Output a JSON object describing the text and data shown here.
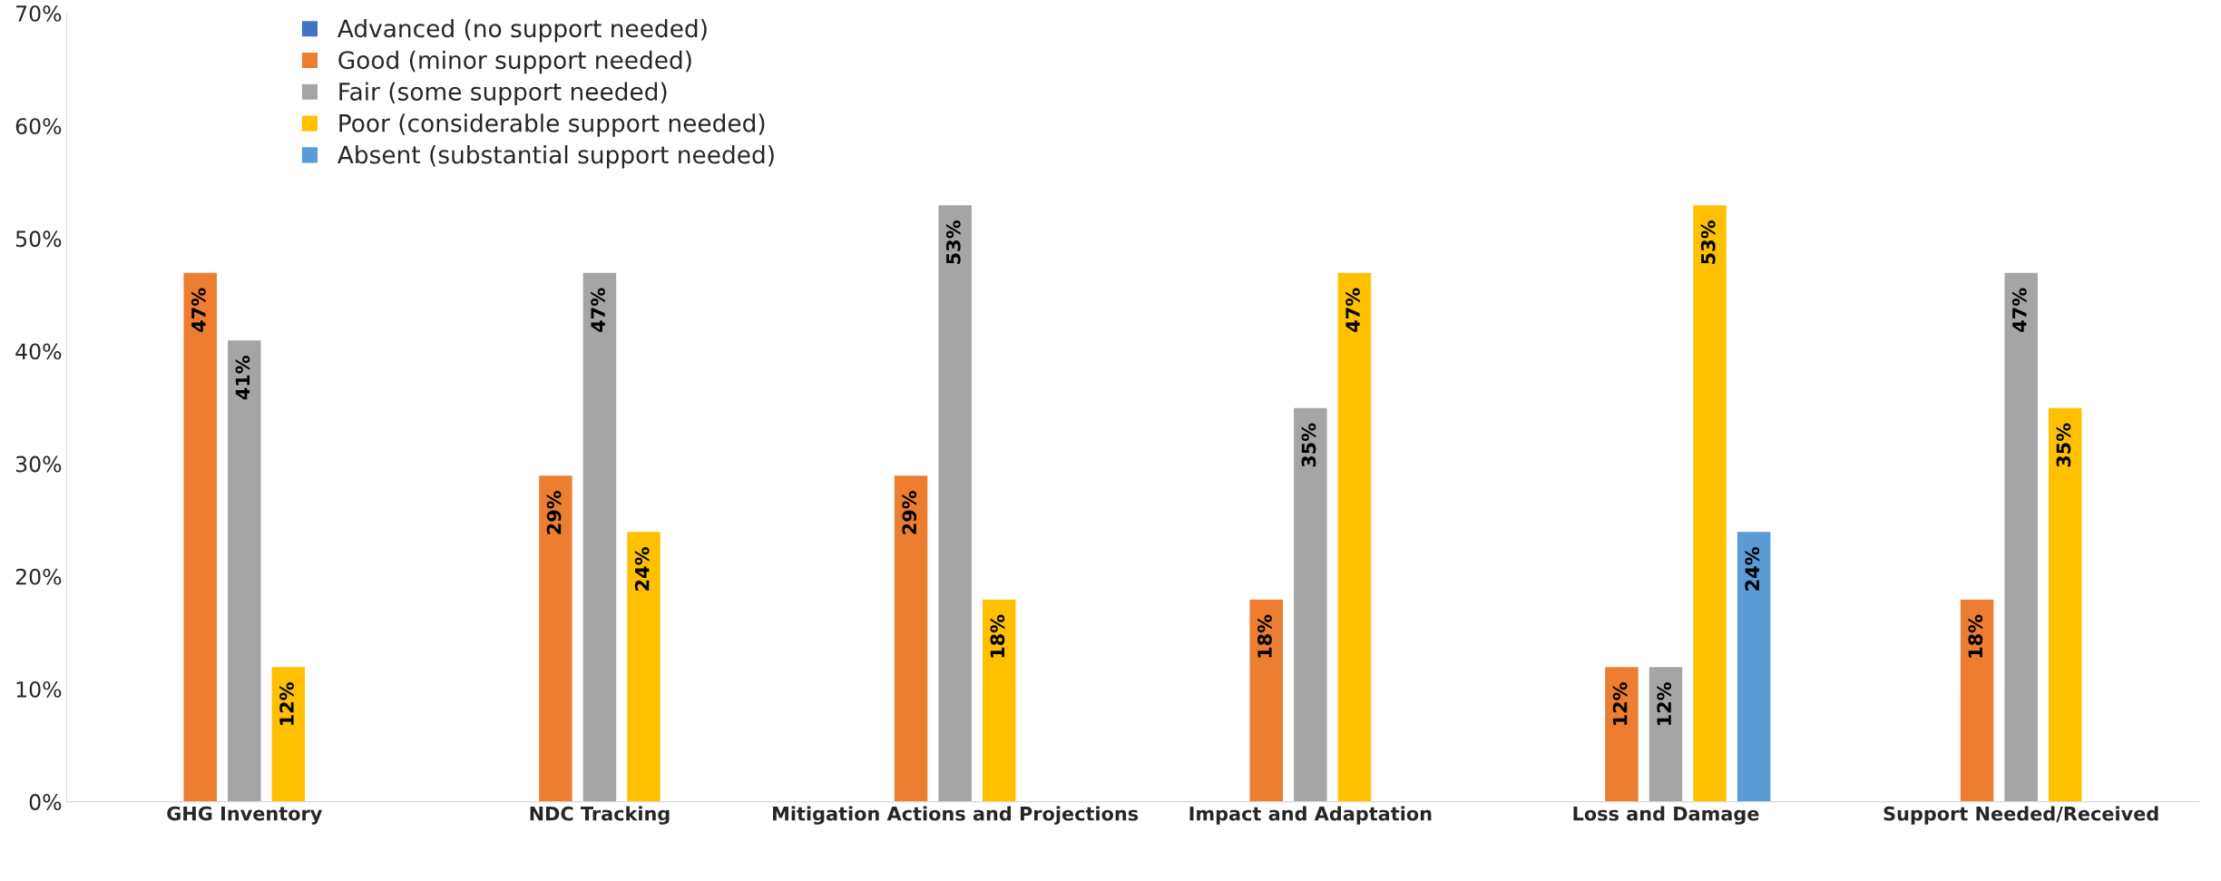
{
  "chart_data": {
    "type": "bar",
    "categories": [
      "GHG Inventory",
      "NDC Tracking",
      "Mitigation Actions and Projections",
      "Impact and Adaptation",
      "Loss and Damage",
      "Support Needed/Received"
    ],
    "series": [
      {
        "name": "Advanced (no support needed)",
        "color": "#4472c4",
        "values": [
          null,
          null,
          null,
          null,
          null,
          null
        ],
        "value_labels": [
          null,
          null,
          null,
          null,
          null,
          null
        ]
      },
      {
        "name": "Good (minor support needed)",
        "color": "#ed7d31",
        "values": [
          47,
          29,
          29,
          18,
          12,
          18
        ],
        "value_labels": [
          "47%",
          "29%",
          "29%",
          "18%",
          "12%",
          "18%"
        ]
      },
      {
        "name": "Fair (some support needed)",
        "color": "#a5a5a5",
        "values": [
          41,
          47,
          53,
          35,
          12,
          47
        ],
        "value_labels": [
          "41%",
          "47%",
          "53%",
          "35%",
          "12%",
          "47%"
        ]
      },
      {
        "name": "Poor (considerable support needed)",
        "color": "#ffc000",
        "values": [
          12,
          24,
          18,
          47,
          53,
          35
        ],
        "value_labels": [
          "12%",
          "24%",
          "18%",
          "47%",
          "53%",
          "35%"
        ]
      },
      {
        "name": "Absent (substantial support needed)",
        "color": "#5b9bd5",
        "values": [
          null,
          null,
          null,
          null,
          24,
          null
        ],
        "value_labels": [
          null,
          null,
          null,
          null,
          "24%",
          null
        ]
      }
    ],
    "ylim": [
      0,
      70
    ],
    "yticks": [
      {
        "value": 0,
        "label": "0%"
      },
      {
        "value": 10,
        "label": "10%"
      },
      {
        "value": 20,
        "label": "20%"
      },
      {
        "value": 30,
        "label": "30%"
      },
      {
        "value": 40,
        "label": "40%"
      },
      {
        "value": 50,
        "label": "50%"
      },
      {
        "value": 60,
        "label": "60%"
      },
      {
        "value": 70,
        "label": "70%"
      }
    ],
    "grid": false,
    "legend": "top left"
  }
}
